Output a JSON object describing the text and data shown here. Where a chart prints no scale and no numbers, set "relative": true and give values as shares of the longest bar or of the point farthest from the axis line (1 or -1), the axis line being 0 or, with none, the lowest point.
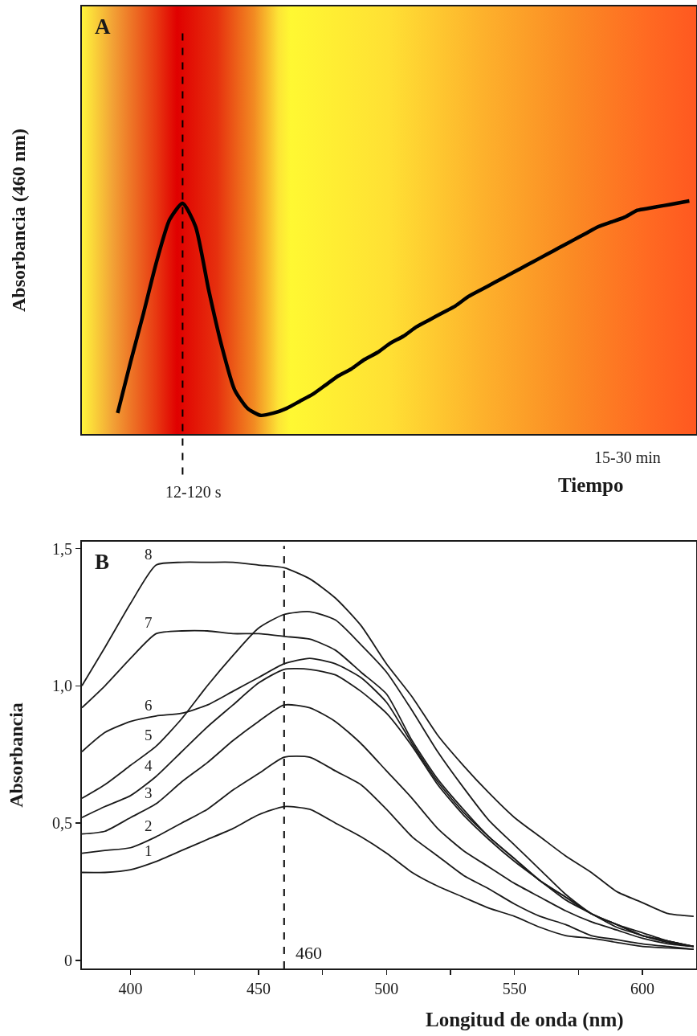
{
  "chart_data": [
    {
      "type": "line",
      "title": "A",
      "xlabel": "Tiempo",
      "ylabel": "Absorbancia (460 nm)",
      "relative": true,
      "legend": false,
      "grid": false,
      "categories": [
        null,
        null,
        null,
        null,
        null,
        null,
        null,
        null,
        null,
        null,
        null,
        null,
        null,
        null,
        null,
        null,
        null,
        null,
        null,
        null,
        null,
        null,
        null,
        null,
        null,
        null,
        null,
        null,
        null,
        null,
        null,
        null,
        null,
        null,
        null,
        null,
        null,
        null,
        null,
        null,
        null,
        null,
        null,
        null,
        null
      ],
      "series": [
        {
          "color": "#000000",
          "values": [
            0.09,
            0.31,
            0.52,
            0.74,
            0.92,
            0.99,
            0.89,
            0.62,
            0.38,
            0.19,
            0.11,
            0.08,
            0.09,
            0.11,
            0.14,
            0.17,
            0.21,
            0.25,
            0.28,
            0.32,
            0.35,
            0.39,
            0.42,
            0.46,
            0.49,
            0.52,
            0.55,
            0.59,
            0.62,
            0.65,
            0.68,
            0.71,
            0.74,
            0.77,
            0.8,
            0.83,
            0.86,
            0.89,
            0.91,
            0.93,
            0.96,
            0.97,
            0.98,
            0.99,
            1
          ]
        }
      ],
      "annotations": [
        "12-120 s",
        "15-30 min"
      ]
    },
    {
      "type": "line",
      "title": "B",
      "xlabel": "Longitud de onda (nm)",
      "ylabel": "Absorbancia",
      "legend": false,
      "grid": false,
      "x": [
        381,
        390,
        400,
        410,
        420,
        430,
        440,
        450,
        460,
        470,
        480,
        490,
        500,
        510,
        520,
        530,
        540,
        550,
        560,
        570,
        580,
        590,
        600,
        610,
        620
      ],
      "xlim": [
        381,
        621
      ],
      "ylim": [
        -0.03,
        1.525
      ],
      "xticks": [
        400,
        {
          "value": 425,
          "label": null
        },
        450,
        {
          "value": 475,
          "label": null
        },
        500,
        {
          "value": 525,
          "label": null
        },
        550,
        {
          "value": 575,
          "label": null
        },
        600
      ],
      "yticks": [
        0,
        {
          "value": 0.5,
          "label": "0,5"
        },
        {
          "value": 1,
          "label": "1,0"
        },
        {
          "value": 1.5,
          "label": "1,5"
        }
      ],
      "series": [
        {
          "name": "1",
          "color": "#1a1a1a",
          "values": [
            0.32,
            0.32,
            0.33,
            0.36,
            0.4,
            0.44,
            0.48,
            0.53,
            0.56,
            0.55,
            0.5,
            0.45,
            0.39,
            0.32,
            0.27,
            0.23,
            0.19,
            0.16,
            0.12,
            0.09,
            0.08,
            0.065,
            0.05,
            0.045,
            0.04
          ]
        },
        {
          "name": "2",
          "color": "#1a1a1a",
          "values": [
            0.39,
            0.4,
            0.41,
            0.45,
            0.5,
            0.55,
            0.62,
            0.68,
            0.74,
            0.74,
            0.69,
            0.64,
            0.55,
            0.45,
            0.38,
            0.31,
            0.26,
            0.205,
            0.16,
            0.13,
            0.09,
            0.075,
            0.06,
            0.05,
            0.04
          ]
        },
        {
          "name": "3",
          "color": "#1a1a1a",
          "values": [
            0.46,
            0.47,
            0.52,
            0.57,
            0.65,
            0.72,
            0.8,
            0.87,
            0.93,
            0.92,
            0.87,
            0.79,
            0.69,
            0.59,
            0.48,
            0.4,
            0.34,
            0.28,
            0.23,
            0.18,
            0.14,
            0.11,
            0.08,
            0.06,
            0.05
          ]
        },
        {
          "name": "4",
          "color": "#1a1a1a",
          "values": [
            0.52,
            0.56,
            0.6,
            0.67,
            0.76,
            0.85,
            0.93,
            1.01,
            1.06,
            1.06,
            1.04,
            0.98,
            0.9,
            0.78,
            0.64,
            0.53,
            0.44,
            0.36,
            0.29,
            0.22,
            0.17,
            0.12,
            0.09,
            0.065,
            0.05
          ]
        },
        {
          "name": "5",
          "color": "#1a1a1a",
          "values": [
            0.59,
            0.64,
            0.71,
            0.78,
            0.88,
            1,
            1.11,
            1.21,
            1.26,
            1.27,
            1.24,
            1.15,
            1.05,
            0.91,
            0.76,
            0.63,
            0.51,
            0.42,
            0.33,
            0.24,
            0.17,
            0.13,
            0.1,
            0.07,
            0.05
          ]
        },
        {
          "name": "6",
          "color": "#1a1a1a",
          "values": [
            0.76,
            0.83,
            0.87,
            0.89,
            0.9,
            0.93,
            0.98,
            1.03,
            1.08,
            1.1,
            1.08,
            1.03,
            0.94,
            0.79,
            0.65,
            0.54,
            0.45,
            0.37,
            0.29,
            0.23,
            0.17,
            0.13,
            0.09,
            0.07,
            0.05
          ]
        },
        {
          "name": "7",
          "color": "#1a1a1a",
          "values": [
            0.92,
            1,
            1.1,
            1.19,
            1.2,
            1.2,
            1.19,
            1.19,
            1.18,
            1.17,
            1.13,
            1.05,
            0.97,
            0.8,
            0.66,
            0.55,
            0.45,
            0.37,
            0.29,
            0.23,
            0.17,
            0.13,
            0.09,
            0.07,
            0.05
          ]
        },
        {
          "name": "8",
          "color": "#1a1a1a",
          "values": [
            1,
            1.14,
            1.3,
            1.44,
            1.45,
            1.45,
            1.45,
            1.44,
            1.43,
            1.39,
            1.32,
            1.22,
            1.08,
            0.96,
            0.82,
            0.71,
            0.61,
            0.52,
            0.45,
            0.38,
            0.32,
            0.25,
            0.21,
            0.17,
            0.16
          ]
        }
      ],
      "ref_lines": [
        {
          "axis": "x",
          "value": 460,
          "label": "460",
          "color": "#1a1a1a",
          "line_style": "dashed"
        }
      ]
    }
  ]
}
